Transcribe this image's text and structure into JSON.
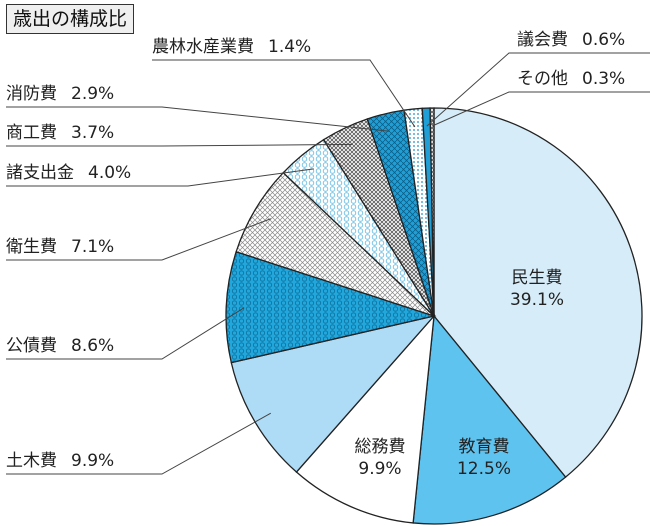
{
  "chart_data": {
    "type": "pie",
    "title": "歳出の構成比",
    "unit": "%",
    "slices": [
      {
        "name": "民生費",
        "value": 39.1,
        "label_text": "39.1%",
        "color": "#d6ecf8",
        "pattern": "none",
        "label_pos": "inside"
      },
      {
        "name": "教育費",
        "value": 12.5,
        "label_text": "12.5%",
        "color": "#5ec3ef",
        "pattern": "none",
        "label_pos": "inside"
      },
      {
        "name": "総務費",
        "value": 9.9,
        "label_text": "9.9%",
        "color": "#ffffff",
        "pattern": "none",
        "label_pos": "inside"
      },
      {
        "name": "土木費",
        "value": 9.9,
        "label_text": "9.9%",
        "color": "#aedbf5",
        "pattern": "none",
        "label_pos": "outside"
      },
      {
        "name": "公債費",
        "value": 8.6,
        "label_text": "8.6%",
        "color": "#22a7dc",
        "pattern": "hex",
        "label_pos": "outside"
      },
      {
        "name": "衛生費",
        "value": 7.1,
        "label_text": "7.1%",
        "color": "#ffffff",
        "pattern": "cross",
        "label_pos": "outside"
      },
      {
        "name": "諸支出金",
        "value": 4.0,
        "label_text": "4.0%",
        "color": "#ffffff",
        "pattern": "hexwhite",
        "label_pos": "outside"
      },
      {
        "name": "商工費",
        "value": 3.7,
        "label_text": "3.7%",
        "color": "#ffffff",
        "pattern": "crossdark",
        "label_pos": "outside"
      },
      {
        "name": "消防費",
        "value": 2.9,
        "label_text": "2.9%",
        "color": "#1f9fd6",
        "pattern": "weave",
        "label_pos": "outside"
      },
      {
        "name": "農林水産業費",
        "value": 1.4,
        "label_text": "1.4%",
        "color": "#ffffff",
        "pattern": "dots",
        "label_pos": "outside"
      },
      {
        "name": "議会費",
        "value": 0.6,
        "label_text": "0.6%",
        "color": "#1f9fd6",
        "pattern": "none",
        "label_pos": "outside"
      },
      {
        "name": "その他",
        "value": 0.3,
        "label_text": "0.3%",
        "color": "#ffffff",
        "pattern": "crossdark",
        "label_pos": "outside"
      }
    ]
  }
}
